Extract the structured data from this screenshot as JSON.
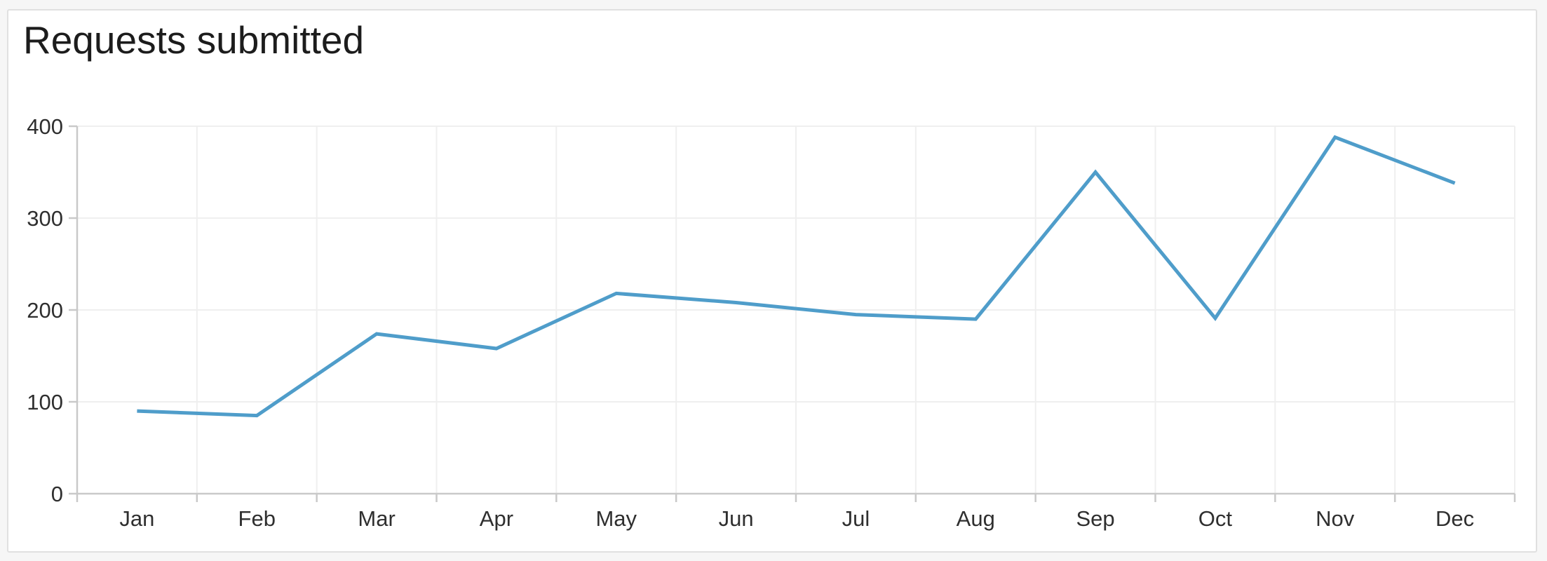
{
  "header": {
    "title": "Requests submitted"
  },
  "chart_data": {
    "type": "line",
    "title": "Requests submitted",
    "categories": [
      "Jan",
      "Feb",
      "Mar",
      "Apr",
      "May",
      "Jun",
      "Jul",
      "Aug",
      "Sep",
      "Oct",
      "Nov",
      "Dec"
    ],
    "values": [
      90,
      85,
      174,
      158,
      218,
      208,
      195,
      190,
      350,
      191,
      388,
      338
    ],
    "xlabel": "",
    "ylabel": "",
    "ylim": [
      0,
      400
    ],
    "yticks": [
      0,
      100,
      200,
      300,
      400
    ],
    "grid": true,
    "legend": false,
    "line_color": "#4f9dca"
  },
  "style_colors": {
    "line": "#4f9dca",
    "gridline": "#efefef",
    "axis": "#c9c9c9",
    "tick_label": "#2f2f2f",
    "title": "#1c1c1c",
    "card_background": "#ffffff",
    "card_border": "#e0e0e0",
    "page_background": "#f6f6f6"
  }
}
